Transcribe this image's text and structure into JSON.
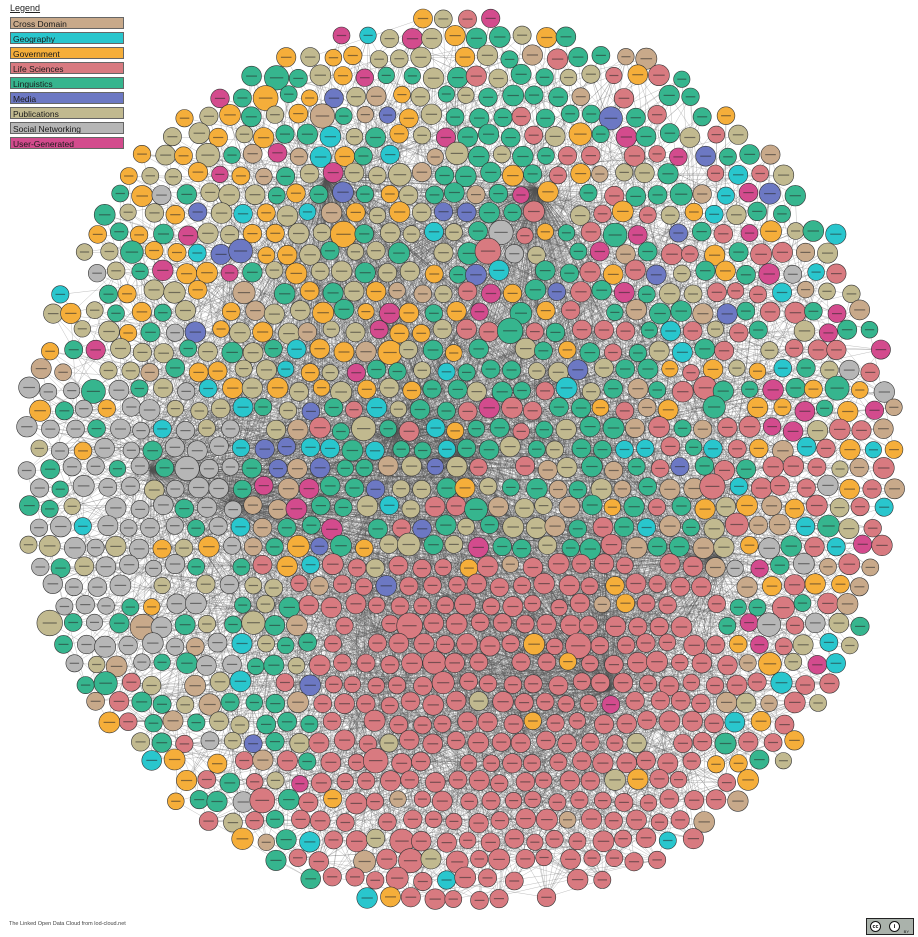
{
  "legend": {
    "title": "Legend",
    "items": [
      {
        "label": "Cross Domain",
        "color": "#c8a98a"
      },
      {
        "label": "Geography",
        "color": "#29c6cd"
      },
      {
        "label": "Government",
        "color": "#f5ae3a"
      },
      {
        "label": "Life Sciences",
        "color": "#d87a80"
      },
      {
        "label": "Linguistics",
        "color": "#36b58e"
      },
      {
        "label": "Media",
        "color": "#6c78c3"
      },
      {
        "label": "Publications",
        "color": "#c1b98f"
      },
      {
        "label": "Social Networking",
        "color": "#b6b6b6"
      },
      {
        "label": "User-Generated",
        "color": "#d34b8d"
      }
    ]
  },
  "attribution": "The Linked Open Data Cloud from lod-cloud.net",
  "license_badge": {
    "icons": [
      "cc-icon",
      "by-icon"
    ],
    "text": "BY"
  },
  "graph": {
    "edge_color": "#555555",
    "node_border_color": "#333333"
  }
}
